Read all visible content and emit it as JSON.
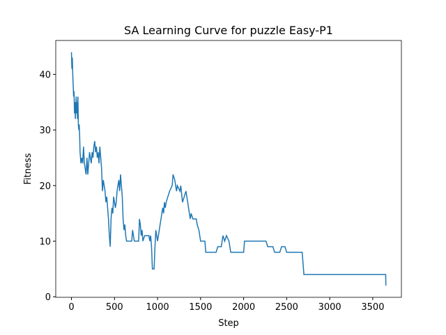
{
  "chart_data": {
    "type": "line",
    "title": "SA Learning Curve for puzzle Easy-P1",
    "xlabel": "Step",
    "ylabel": "Fitness",
    "color": "#1f77b4",
    "x": [
      0,
      5,
      10,
      15,
      20,
      25,
      30,
      35,
      40,
      45,
      50,
      55,
      60,
      65,
      70,
      75,
      80,
      85,
      90,
      95,
      100,
      110,
      120,
      130,
      140,
      150,
      160,
      170,
      180,
      190,
      200,
      210,
      220,
      230,
      240,
      250,
      260,
      270,
      280,
      290,
      300,
      310,
      320,
      330,
      340,
      350,
      360,
      370,
      380,
      390,
      400,
      410,
      420,
      430,
      440,
      450,
      460,
      470,
      480,
      490,
      500,
      510,
      520,
      530,
      540,
      550,
      560,
      570,
      580,
      590,
      600,
      610,
      620,
      630,
      640,
      700,
      710,
      720,
      730,
      780,
      790,
      800,
      810,
      820,
      830,
      850,
      900,
      910,
      920,
      930,
      940,
      960,
      970,
      980,
      990,
      1000,
      1010,
      1020,
      1030,
      1040,
      1050,
      1060,
      1070,
      1080,
      1090,
      1100,
      1120,
      1140,
      1170,
      1180,
      1200,
      1210,
      1220,
      1230,
      1260,
      1270,
      1290,
      1310,
      1330,
      1360,
      1370,
      1380,
      1390,
      1410,
      1450,
      1460,
      1480,
      1500,
      1550,
      1560,
      1680,
      1700,
      1740,
      1760,
      1780,
      1800,
      1830,
      1850,
      2000,
      2010,
      2260,
      2280,
      2340,
      2360,
      2420,
      2440,
      2480,
      2500,
      2680,
      2690,
      2700,
      3650,
      3652
    ],
    "values": [
      44,
      41,
      43,
      40,
      38,
      36,
      37,
      33,
      35,
      32,
      34,
      36,
      33,
      35,
      32,
      36,
      31,
      30,
      31,
      29,
      26,
      24,
      25,
      24,
      27,
      24,
      23,
      22,
      25,
      22,
      24,
      26,
      25,
      24,
      26,
      25,
      27,
      28,
      26,
      27,
      25,
      26,
      24,
      27,
      25,
      23,
      19,
      21,
      20,
      19,
      17,
      18,
      16,
      14,
      11,
      9,
      14,
      16,
      15,
      18,
      17,
      16,
      17,
      19,
      20,
      21,
      19,
      22,
      20,
      18,
      14,
      12,
      13,
      11,
      10,
      10,
      12,
      11,
      10,
      10,
      14,
      13,
      11,
      12,
      10,
      11,
      11,
      10,
      11,
      9,
      5,
      5,
      9,
      12,
      11,
      10,
      11,
      12,
      13,
      14,
      15,
      16,
      15,
      17,
      16,
      17,
      18,
      19,
      20,
      22,
      21,
      20,
      19,
      20,
      19,
      20,
      17,
      18,
      19,
      16,
      15,
      14,
      15,
      14,
      14,
      13,
      12,
      10,
      10,
      8,
      8,
      9,
      9,
      11,
      10,
      11,
      10,
      8,
      8,
      10,
      10,
      9,
      9,
      8,
      8,
      9,
      9,
      8,
      8,
      6,
      4,
      4,
      2
    ],
    "xlim": [
      -182.5,
      3832.5
    ],
    "ylim": [
      -0.1,
      46.1
    ],
    "xticks": [
      0,
      500,
      1000,
      1500,
      2000,
      2500,
      3000,
      3500
    ],
    "yticks": [
      0,
      10,
      20,
      30,
      40
    ]
  }
}
